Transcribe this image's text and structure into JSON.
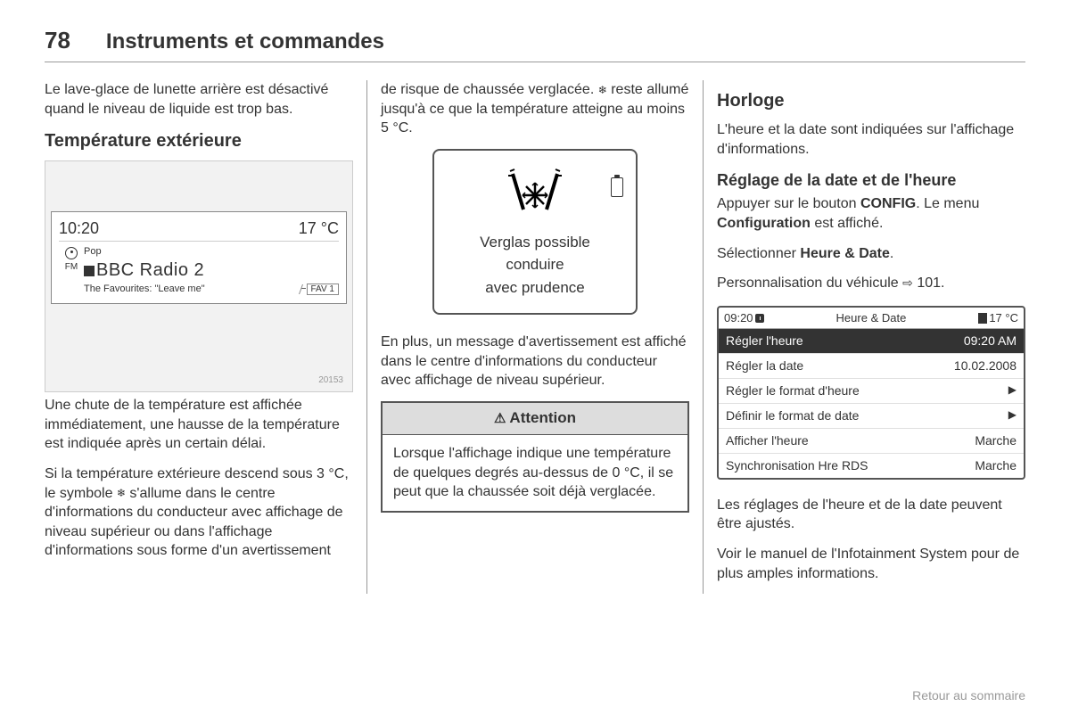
{
  "page_number": "78",
  "chapter_title": "Instruments et commandes",
  "col1": {
    "p1": "Le lave-glace de lunette arrière est désactivé quand le niveau de liquide est trop bas.",
    "section_title": "Température extérieure",
    "radio": {
      "time": "10:20",
      "temp": "17 °C",
      "fm_label": "FM",
      "genre": "Pop",
      "station": "BBC Radio 2",
      "song": "The Favourites: \"Leave me\"",
      "fav": "FAV 1",
      "img_id": "20153"
    },
    "p2": "Une chute de la température est affichée immédiatement, une hausse de la température est indiquée après un certain délai.",
    "p3_a": "Si la température extérieure descend sous 3 °C, le symbole ",
    "p3_b": " s'allume dans le centre d'informations du conducteur avec affichage de niveau supérieur ou dans l'affichage d'informations sous forme d'un avertissement"
  },
  "col2": {
    "p1_a": "de risque de chaussée verglacée. ",
    "p1_b": " reste allumé jusqu'à ce que la température atteigne au moins 5 °C.",
    "warning": {
      "l1": "Verglas possible",
      "l2": "conduire",
      "l3": "avec prudence"
    },
    "p2": "En plus, un message d'avertissement est affiché dans le centre d'informations du conducteur avec affichage de niveau supérieur.",
    "attention_title": "Attention",
    "attention_body": "Lorsque l'affichage indique une température de quelques degrés au-dessus de 0 °C, il se peut que la chaussée soit déjà verglacée."
  },
  "col3": {
    "section_title": "Horloge",
    "p1": "L'heure et la date sont indiquées sur l'affichage d'informations.",
    "subsection_title": "Réglage de la date et de l'heure",
    "p2_a": "Appuyer sur le bouton ",
    "p2_b": "CONFIG",
    "p2_c": ". Le menu ",
    "p2_d": "Configuration",
    "p2_e": " est affiché.",
    "p3_a": "Sélectionner ",
    "p3_b": "Heure & Date",
    "p3_c": ".",
    "p4_a": "Personnalisation du véhicule ",
    "p4_ref": "101",
    "p4_c": ".",
    "hd": {
      "time": "09:20",
      "title": "Heure & Date",
      "temp": "17 °C",
      "rows": [
        {
          "label": "Régler l'heure",
          "value": "09:20 AM",
          "selected": true
        },
        {
          "label": "Régler la date",
          "value": "10.02.2008"
        },
        {
          "label": "Régler le format d'heure",
          "arrow": true
        },
        {
          "label": "Définir le format de date",
          "arrow": true
        },
        {
          "label": "Afficher l'heure",
          "value": "Marche"
        },
        {
          "label": "Synchronisation Hre RDS",
          "value": "Marche"
        }
      ]
    },
    "p5": "Les réglages de l'heure et de la date peuvent être ajustés.",
    "p6": "Voir le manuel de l'Infotainment System pour de plus amples informations."
  },
  "footer_link": "Retour au sommaire"
}
